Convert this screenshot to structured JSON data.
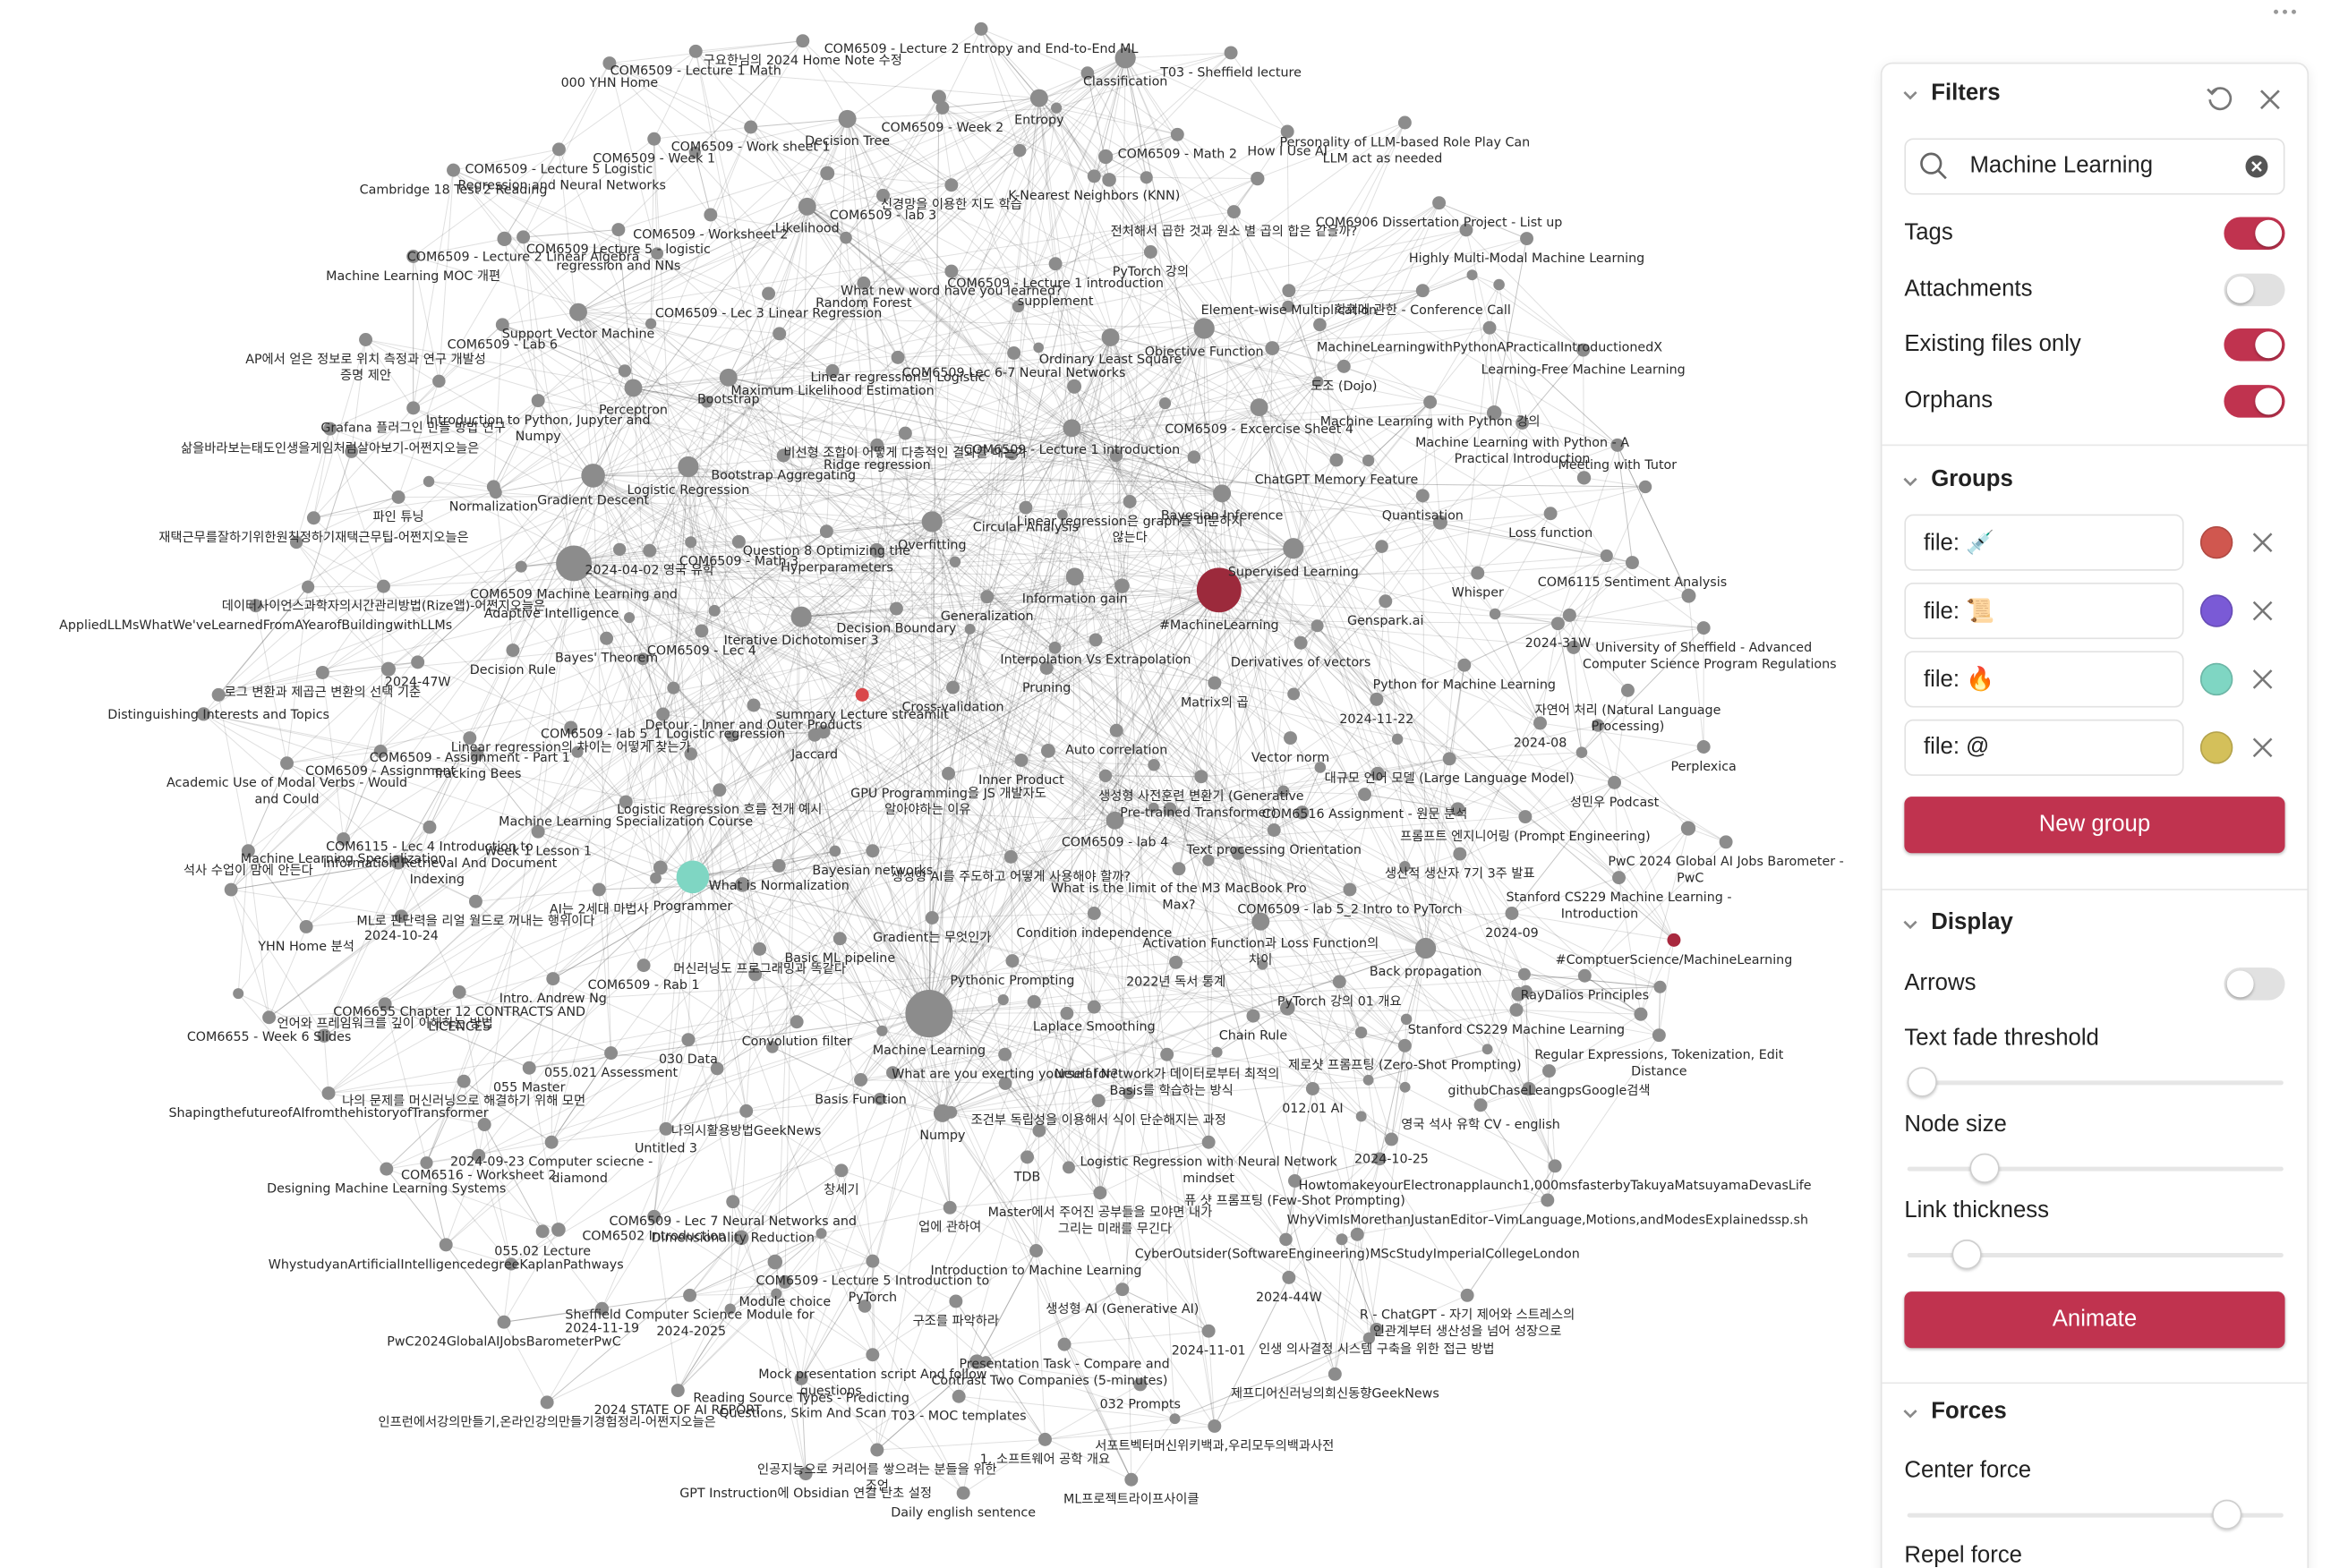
{
  "graph": {
    "nodes": [
      "COM6509 - Lecture 2 Entropy and End-to-End ML",
      "구요한님의 2024 Home Note 수정",
      "COM6509 - Lecture 1 Math",
      "000 YHN Home",
      "Classification",
      "T03 - Sheffield lecture",
      "Entropy",
      "COM6509 - Week 2",
      "Decision Tree",
      "COM6509 - Work sheet 1",
      "COM6509 - Week 1",
      "COM6509 - Lecture 5 Logistic",
      "Regression and Neural Networks",
      "Cambridge 18 Test 2 Reading",
      "COM6509 - Math 2",
      "How I Use AI",
      "Personality of LLM-based Role Play Can",
      "LLM act as needed",
      "K-Nearest Neighbors (KNN)",
      "신경망을 이용한 지도 학습",
      "COM6509 - lab 3",
      "Likelihood",
      "COM6509 - Worksheet 2",
      "COM6509 Lecture 5 - logistic",
      "regression and NNs",
      "COM6509 - Lecture 2 Linear Algebra",
      "Machine Learning MOC 개편",
      "전처해서 곱한 것과 원소 별 곱의 합은 같을까?",
      "COM6906 Dissertation Project - List up",
      "Highly Multi-Modal Machine Learning",
      "PyTorch 강의",
      "COM6509 - Lecture 1 introduction",
      "What new word have you learned?",
      "Random Forest",
      "supplement",
      "COM6509 - Lec 3 Linear Regression",
      "Element-wise Multiplication",
      "학회에 관한 - Conference Call",
      "Support Vector Machine",
      "COM6509 - Lab 6",
      "AP에서 얻은 정보로 위치 측정과 연구 개발성",
      "증명 제안",
      "Objective Function",
      "Ordinary Least Square",
      "MachineLearningwithPythonAPracticalIntroductionedX",
      "Learning-Free Machine Learning",
      "COM6509 Lec 6-7 Neural Networks",
      "Linear regression의 Logistic",
      "Maximum Likelihood Estimation",
      "도조 (Dojo)",
      "Perceptron",
      "Bootstrap",
      "Introduction to Python, Jupyter and",
      "Numpy",
      "Grafana 플러그인 만들 방법 연구",
      "삶을바라보는태도인생을게임처럼살아보기-어쩐지오늘은",
      "Machine Learning with Python 강의",
      "COM6509 - Excercise Sheet 4",
      "Machine Learning with Python - A",
      "Practical Introduction",
      "Meeting with Tutor",
      "비선형 조합이 어떻게 다층적인 결과를 내는가",
      "COM6509 - Lecture 1 introduction",
      "Bootstrap Aggregating",
      "Ridge regression",
      "ChatGPT Memory Feature",
      "Logistic Regression",
      "Gradient Descent",
      "Normalization",
      "파인 튜닝",
      "재택근무를잘하기위한원칙정하기재택근무팁-어쩐지오늘은",
      "Bayesian Inference",
      "Quantisation",
      "Linear regression은 graph를 미분하지",
      "Circular Analysis",
      "않는다",
      "Loss function",
      "Question 8 Optimizing the",
      "Overfitting",
      "Hyperparameters",
      "COM6509 - Math 3",
      "2024-04-02 영국 유학",
      "Supervised Learning",
      "COM6115 Sentiment Analysis",
      "COM6509 Machine Learning and",
      "Adaptive Intelligence",
      "데이터사이언스과학자의시간관리방법(Rize앱)-어쩐지오늘은",
      "AppliedLLMsWhatWe'veLearnedFromAYearofBuildingwithLLMs",
      "Information gain",
      "Generalization",
      "#MachineLearning",
      "Genspark.ai",
      "Whisper",
      "Decision Boundary",
      "Iterative Dichotomiser 3",
      "COM6509 - Lec 4",
      "Bayes' Theorem",
      "Decision Rule",
      "2024-31W",
      "University of Sheffield - Advanced",
      "Computer Science Program Regulations",
      "Interpolation Vs Extrapolation",
      "Derivatives of vectors",
      "로그 변환과 제곱근 변환의 선택 기준",
      "2024-47W",
      "Distinguishing Interests and Topics",
      "Pruning",
      "Matrix의 곱",
      "Python for Machine Learning",
      "자연어 처리 (Natural Language",
      "Processing)",
      "Cross-validation",
      "summary Lecture streamlit",
      "Detour - Inner and Outer Products",
      "COM6509 - lab 5_1 Logistic regression",
      "2024-11-22",
      "2024-08",
      "Auto correlation",
      "Vector norm",
      "Perplexica",
      "Linear regression의 차이는 어떻게 찾는가",
      "COM6509 - Assignment - Part 1",
      "COM6509 - Assignment",
      "Tracking Bees",
      "Academic Use of Modal Verbs - Would",
      "and Could",
      "대규모 언어 모델 (Large Language Model)",
      "Inner Product",
      "Jaccard",
      "GPU Programming을 JS 개발자도",
      "알아야하는 이유",
      "생성형 사전훈련 변환기 (Generative",
      "Pre-trained Transformer)",
      "성민우 Podcast",
      "Logistic Regression 흐름 전개 예시",
      "COM6516 Assignment - 원문 분석",
      "Machine Learning Specialization Course",
      "프롬프트 엔지니어링 (Prompt Engineering)",
      "COM6509 - lab 4",
      "Text processing Orientation",
      "COM6115 - Lec 4 Introduction to",
      "Week 1 Lesson 1",
      "Machine Learning Specialization",
      "Information Retrieval And Document",
      "석사 수업이 맘에 안든다",
      "Indexing",
      "PwC 2024 Global AI Jobs Barometer -",
      "PwC",
      "생산적 생산자 7기 3주 발표",
      "Bayesian networks",
      "What is Normalization",
      "What is the limit of the M3 MacBook Pro",
      "Max?",
      "Stanford CS229 Machine Learning -",
      "Introduction",
      "생성형 AI를 주도하고 어떻게 사용해야 할까?",
      "COM6509 - lab 5_2 Intro to PyTorch",
      "Programmer",
      "AI는 2세대 마법사",
      "ML로 판단력을 리얼 월드로 꺼내는 행위이다",
      "2024-10-24",
      "YHN Home 분석",
      "Condition independence",
      "Gradient는 무엇인가",
      "2024-09",
      "Activation Function과 Loss Function의",
      "차이",
      "#ComptuerScience/MachineLearning",
      "Basic ML pipeline",
      "머신러닝도 프로그래밍과 똑같다",
      "Back propagation",
      "Pythonic Prompting",
      "2022년 독서 통계",
      "COM6509 - Rab 1",
      "Intro. Andrew Ng",
      "RayDalios Principles",
      "PyTorch 강의 01 개요",
      "COM6655 Chapter 12 CONTRACTS AND",
      "LICENCES",
      "언어와 프레임워크를 깊이 이해하는 방법",
      "COM6655 - Week 6 Slides",
      "Laplace Smoothing",
      "Stanford CS229 Machine Learning",
      "Chain Rule",
      "Convolution filter",
      "Machine Learning",
      "Regular Expressions, Tokenization, Edit",
      "Distance",
      "030 Data",
      "055.021 Assessment",
      "What are you exerting yourself for?",
      "Neural Network가 데이터로부터 최적의",
      "Basis를 학습하는 방식",
      "제로샷 프롬프팅 (Zero-Shot Prompting)",
      "055 Master",
      "githubChaseLeangpsGoogle검색",
      "나의 문제를 머신러닝으로 해결하기 위해 모먼",
      "Basis Function",
      "012.01 AI",
      "ShapingthefutureofAIfromthehistoryofTransformer",
      "조건부 독립성을 이용해서 식이 단순해지는 과정",
      "영국 석사 유학 CV - english",
      "나의시활용방법GeekNews",
      "Numpy",
      "Untitled 3",
      "2024-09-23 Computer sciecne -",
      "Logistic Regression with Neural Network",
      "2024-10-25",
      "mindset",
      "diamond",
      "COM6516 - Worksheet 2",
      "HowtomakeyourElectronapplaunch1,000msfasterbyTakuyaMatsuyamaDevasLife",
      "TDB",
      "Designing Machine Learning Systems",
      "창세기",
      "퓨 샷 프롬프팅 (Few-Shot Prompting)",
      "Master에서 주어진 공부들을 모야면 내가",
      "WhyVimIsMorethanJustanEditor–VimLanguage,Motions,andModesExplainedssp.sh",
      "COM6509 - Lec 7 Neural Networks and",
      "업에 관하여",
      "그리는 미래를 무긴다",
      "COM6502 Introduction",
      "Dimensionality Reduction",
      "055.02 Lecture",
      "CyberOutsider(SoftwareEngineering)MScStudyImperialCollegeLondon",
      "WhystudyanArtificialIntelligencedegreeKaplanPathways",
      "Introduction to Machine Learning",
      "COM6509 - Lecture 5 Introduction to",
      "PyTorch",
      "2024-44W",
      "Module choice",
      "Sheffield Computer Science Module for",
      "생성형 AI (Generative AI)",
      "R - ChatGPT - 자기 제어와 스트레스의",
      "구조를 파악하라",
      "2024-11-19",
      "인관계부터 생산성을 넘어 성장으로",
      "2024-2025",
      "PwC2024GlobalAIJobsBarometerPwC",
      "2024-11-01",
      "인생 의사결정 시스템 구축을 위한 접근 방법",
      "Presentation Task - Compare and",
      "Contrast Two Companies (5-minutes)",
      "Mock presentation script And follow",
      "questions",
      "Reading Source Types - Predicting",
      "Questions, Skim And Scan",
      "032 Prompts",
      "제프디어신러닝의희신동향GeekNews",
      "2024 STATE OF AI REPORT",
      "인프런에서강의만들기,온라인강의만들기경험정리-어쩐지오늘은",
      "T03 - MOC templates",
      "서포트벡터머신위키백과,우리모두의백과사전",
      "1. 소프트웨어 공학 개요",
      "인공지능으로 커리어를 쌓으려는 분들을 위한",
      "조언",
      "GPT Instruction에 Obsidian 연결 단초 설정",
      "ML프로젝트라이프사이클",
      "Daily english sentence"
    ]
  },
  "panel": {
    "filters": {
      "title": "Filters",
      "search": "Machine Learning",
      "toggles": [
        {
          "label": "Tags",
          "on": true
        },
        {
          "label": "Attachments",
          "on": false
        },
        {
          "label": "Existing files only",
          "on": true
        },
        {
          "label": "Orphans",
          "on": true
        }
      ]
    },
    "groups": {
      "title": "Groups",
      "items": [
        {
          "query": "file: 💉",
          "color": "#d0574f"
        },
        {
          "query": "file: 📜",
          "color": "#7a5ad6"
        },
        {
          "query": "file: 🔥",
          "color": "#7fd6c3"
        },
        {
          "query": "file: @",
          "color": "#d4c05a"
        }
      ],
      "button": "New group"
    },
    "display": {
      "title": "Display",
      "toggles": [
        {
          "label": "Arrows",
          "on": false
        }
      ],
      "sliders": [
        "Text fade threshold",
        "Node size",
        "Link thickness"
      ],
      "button": "Animate"
    },
    "forces": {
      "title": "Forces",
      "sliders": [
        "Center force",
        "Repel force"
      ]
    }
  }
}
